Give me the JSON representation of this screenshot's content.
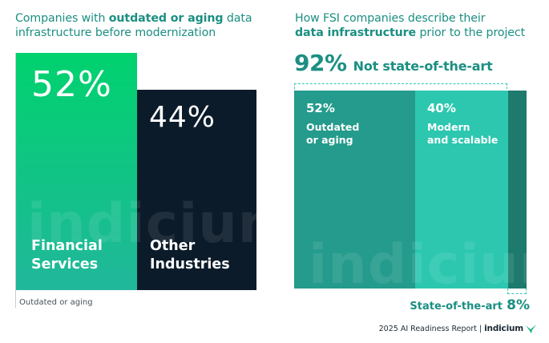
{
  "left_chart": {
    "title_pre": "Companies with ",
    "title_bold": "outdated or aging",
    "title_post": " data",
    "title_line2": "infrastructure before modernization",
    "axis_caption": "Outdated or aging"
  },
  "right_chart": {
    "title_line1": "How FSI companies describe their",
    "title_bold": "data infrastructure",
    "title_post": " prior to the project",
    "headline_value": "92%",
    "headline_label": "Not state-of-the-art",
    "bottom_label": "State-of-the-art",
    "bottom_value": "8%"
  },
  "chart_data": [
    {
      "type": "bar",
      "title": "Companies with outdated or aging data infrastructure before modernization",
      "categories": [
        "Financial Services",
        "Other Industries"
      ],
      "category_lines": [
        [
          "Financial",
          "Services"
        ],
        [
          "Other",
          "Industries"
        ]
      ],
      "values": [
        52,
        44
      ],
      "value_labels": [
        "52%",
        "44%"
      ],
      "xlabel": "Outdated or aging",
      "ylabel": "",
      "ylim": [
        0,
        52
      ]
    },
    {
      "type": "bar",
      "stacked": true,
      "orientation": "horizontal-100%",
      "title": "How FSI companies describe their data infrastructure prior to the project",
      "categories": [
        "Outdated or aging",
        "Modern and scalable",
        "State-of-the-art"
      ],
      "category_lines": [
        [
          "Outdated",
          "or aging"
        ],
        [
          "Modern",
          "and scalable"
        ],
        [
          "State-of-the-art"
        ]
      ],
      "values": [
        52,
        40,
        8
      ],
      "value_labels": [
        "52%",
        "40%",
        "8%"
      ],
      "annotation": "92% Not state-of-the-art"
    }
  ],
  "watermark": "indicium",
  "footer": {
    "report": "2025 AI Readiness Report",
    "separator": "|",
    "brand": "indicium"
  },
  "colors": {
    "fsi_gradient_top": "#00d26e",
    "fsi_gradient_bottom": "#21b79b",
    "other_bar": "#0c1b2a",
    "seg_outdated": "#249b8c",
    "seg_modern": "#2dc7b0",
    "seg_state": "#1e7a6d",
    "teal_text": "#1b8f82"
  }
}
